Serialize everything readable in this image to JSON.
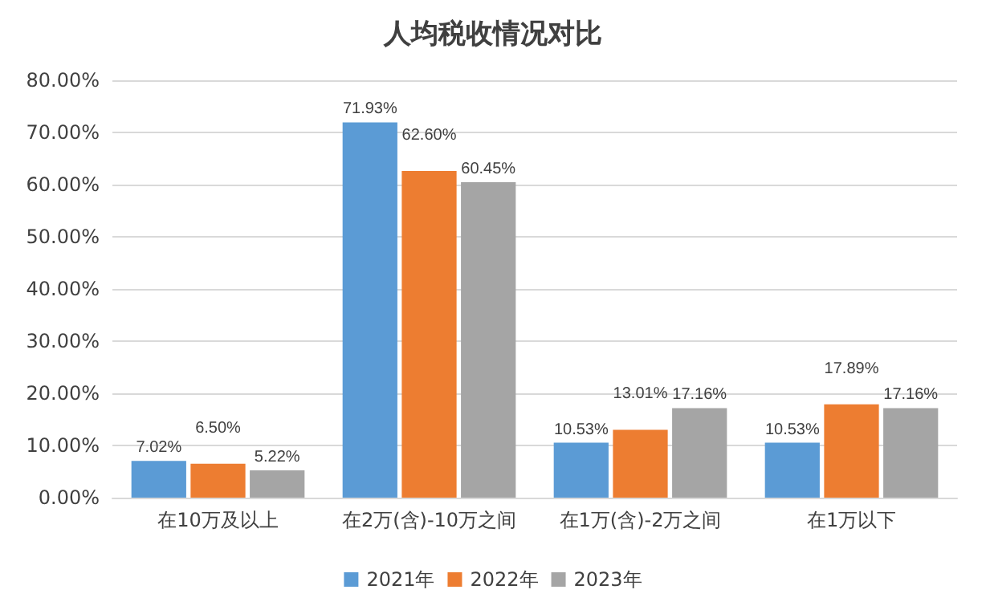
{
  "chart_data": {
    "type": "bar",
    "title": "人均税收情况对比",
    "categories": [
      "在10万及以上",
      "在2万(含)-10万之间",
      "在1万(含)-2万之间",
      "在1万以下"
    ],
    "series": [
      {
        "name": "2021年",
        "color": "#5b9bd5",
        "values": [
          7.02,
          71.93,
          10.53,
          10.53
        ],
        "value_labels": [
          "7.02%",
          "71.93%",
          "10.53%",
          "10.53%"
        ]
      },
      {
        "name": "2022年",
        "color": "#ed7d31",
        "values": [
          6.5,
          62.6,
          13.01,
          17.89
        ],
        "value_labels": [
          "6.50%",
          "62.60%",
          "13.01%",
          "17.89%"
        ]
      },
      {
        "name": "2023年",
        "color": "#a5a5a5",
        "values": [
          5.22,
          60.45,
          17.16,
          17.16
        ],
        "value_labels": [
          "5.22%",
          "60.45%",
          "17.16%",
          "17.16%"
        ]
      }
    ],
    "ylim": [
      0,
      80
    ],
    "yticks": [
      {
        "value": 0,
        "label": "0.00%"
      },
      {
        "value": 10,
        "label": "10.00%"
      },
      {
        "value": 20,
        "label": "20.00%"
      },
      {
        "value": 30,
        "label": "30.00%"
      },
      {
        "value": 40,
        "label": "40.00%"
      },
      {
        "value": 50,
        "label": "50.00%"
      },
      {
        "value": 60,
        "label": "60.00%"
      },
      {
        "value": 70,
        "label": "70.00%"
      },
      {
        "value": 80,
        "label": "80.00%"
      }
    ],
    "grid": "y",
    "legend": "bottom"
  }
}
